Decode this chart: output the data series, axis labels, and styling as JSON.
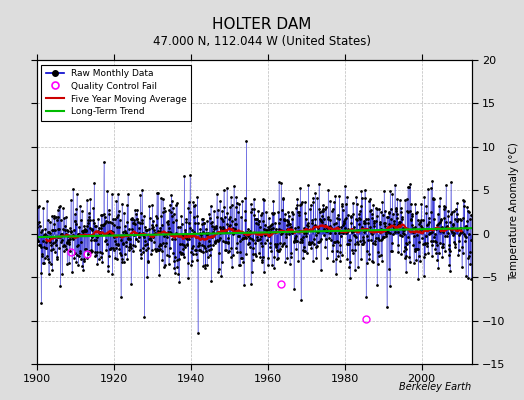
{
  "title": "HOLTER DAM",
  "subtitle": "47.000 N, 112.044 W (United States)",
  "ylabel_right": "Temperature Anomaly (°C)",
  "credit": "Berkeley Earth",
  "xlim": [
    1900,
    2013
  ],
  "ylim": [
    -15,
    20
  ],
  "yticks": [
    -15,
    -10,
    -5,
    0,
    5,
    10,
    15,
    20
  ],
  "xticks": [
    1900,
    1920,
    1940,
    1960,
    1980,
    2000
  ],
  "background_color": "#dddddd",
  "plot_bg_color": "#ffffff",
  "grid_color": "#aaaaaa",
  "raw_line_color": "#0000cc",
  "raw_dot_color": "#000000",
  "moving_avg_color": "#cc0000",
  "trend_color": "#00bb00",
  "qc_fail_color": "#ff00ff",
  "seed": 42,
  "n_years": 113,
  "start_year": 1900,
  "qc_fail_points": [
    {
      "year": 1909.0,
      "anomaly": -2.1
    },
    {
      "year": 1913.0,
      "anomaly": -2.3
    },
    {
      "year": 1963.5,
      "anomaly": -5.8
    },
    {
      "year": 1985.5,
      "anomaly": -9.8
    }
  ]
}
